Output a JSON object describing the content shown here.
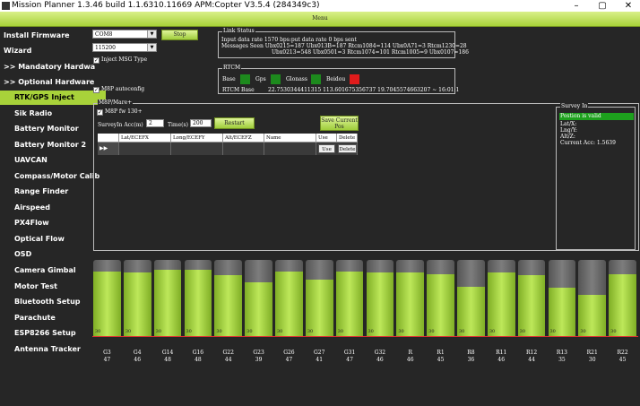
{
  "window": {
    "title": "Mission Planner 1.3.46 build 1.1.6310.11669 APM:Copter V3.5.4 (284349c3)",
    "minimize": "–",
    "maximize": "▢",
    "close": "✕"
  },
  "menu": {
    "label": "Menu"
  },
  "sidebar": {
    "items": [
      {
        "label": "Install Firmware"
      },
      {
        "label": "Wizard"
      },
      {
        "label": ">> Mandatory Hardware"
      },
      {
        "label": ">> Optional Hardware"
      },
      {
        "label": "RTK/GPS Inject"
      },
      {
        "label": "Sik Radio"
      },
      {
        "label": "Battery Monitor"
      },
      {
        "label": "Battery Monitor 2"
      },
      {
        "label": "UAVCAN"
      },
      {
        "label": "Compass/Motor Calib"
      },
      {
        "label": "Range Finder"
      },
      {
        "label": "Airspeed"
      },
      {
        "label": "PX4Flow"
      },
      {
        "label": "Optical Flow"
      },
      {
        "label": "OSD"
      },
      {
        "label": "Camera Gimbal"
      },
      {
        "label": "Motor Test"
      },
      {
        "label": "Bluetooth Setup"
      },
      {
        "label": "Parachute"
      },
      {
        "label": "ESP8266 Setup"
      },
      {
        "label": "Antenna Tracker"
      }
    ]
  },
  "inject": {
    "port": "COM8",
    "baud": "115200",
    "stop_label": "Stop",
    "inject_msg_type": "Inject MSG Type",
    "m8p_autoconfig": "M8P autoconfig"
  },
  "link_status": {
    "title": "Link Status",
    "line1": "Input data rate        1570  bps:put data rate          0  bps sent",
    "line2": "Messages Seen  Ubx0215=187 Ubx013B=187 Rtcm1084=114 Ubx0A71=3 Rtcm1230=28",
    "line3": "Ubx0213=548 Ubx0501=3 Rtcm1074=101 Rtcm1005=9 Ubx0107=186"
  },
  "rtcm": {
    "title": "RTCM",
    "base_label": "Base",
    "gps_label": "Gps",
    "glonass_label": "Glonass",
    "beidou_label": "Beidou",
    "rtcm_base_label": "RTCM Base",
    "rtcm_base_value": "22.7530344411315 113.601675356737 19.7045574663207 ~ 16:01:1",
    "colors": {
      "base": "#1d8a1d",
      "gps": "#1d8a1d",
      "glonass": "#1d8a1d",
      "beidou": "#e01b1b"
    }
  },
  "m8p": {
    "title": "M8P/Mare+",
    "fw_label": "M8P fw 130+",
    "survey_acc_label": "SurveyIn Acc(m)",
    "survey_acc_value": "2",
    "time_label": "Time(s)",
    "time_value": "200",
    "restart_label": "Restart",
    "save_label": "Save Current Pos",
    "columns": [
      "Lat/ECEFX",
      "Long/ECEFY",
      "Alt/ECEFZ",
      "Name",
      "Use",
      "Delete"
    ],
    "row": {
      "lat": "",
      "lng": "",
      "alt": "",
      "name": "",
      "use": "Use",
      "delete": "Delete"
    },
    "row_marker": "▶▶"
  },
  "survey_in": {
    "title": "Survey In",
    "status": "Postion is valid",
    "lat": "Lat/X:",
    "lng": "Lng/Y:",
    "alt": "Alt/Z:",
    "acc": "Current Acc: 1.5639"
  },
  "chart_data": {
    "type": "bar",
    "categories": [
      "G3",
      "G4",
      "G14",
      "G16",
      "G22",
      "G23",
      "G26",
      "G27",
      "G31",
      "G32",
      "R",
      "R1",
      "R8",
      "R11",
      "R12",
      "R13",
      "R21",
      "R22"
    ],
    "snr": [
      47,
      46,
      48,
      48,
      44,
      39,
      47,
      41,
      47,
      46,
      46,
      45,
      36,
      46,
      44,
      35,
      30,
      45
    ],
    "baseline_label": "30",
    "ylim": [
      0,
      55
    ],
    "colors": {
      "fill": "#a8d23a",
      "empty": "#6e6e6e",
      "baseline": "#e03030"
    }
  }
}
